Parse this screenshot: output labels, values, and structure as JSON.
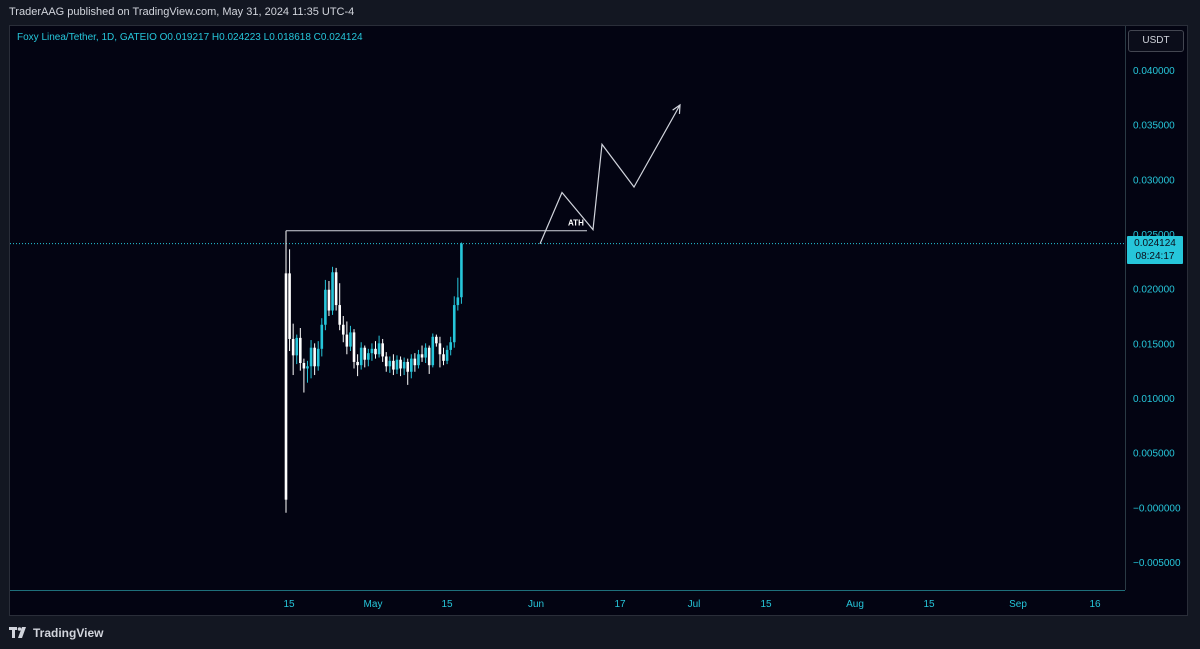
{
  "header": {
    "published": "TraderAAG published on TradingView.com, May 31, 2024 11:35 UTC-4"
  },
  "legend": {
    "text": "Foxy Linea/Tether, 1D, GATEIO  O0.019217  H0.024223  L0.018618  C0.024124"
  },
  "currency_button": "USDT",
  "last_price": {
    "value": "0.024124",
    "countdown": "08:24:17"
  },
  "colors": {
    "accent": "#26c6da",
    "background": "#030412",
    "axis_text": "#26c6da",
    "drawing": "#d1d4dc"
  },
  "footer": {
    "brand": "TradingView",
    "icon": "tradingview-logo-icon"
  },
  "chart_data": {
    "type": "candlestick",
    "title": "Foxy Linea/Tether, 1D, GATEIO",
    "xlabel": "",
    "ylabel": "",
    "ylim": [
      -0.0065,
      0.043
    ],
    "y_ticks": [
      "0.040000",
      "0.035000",
      "0.030000",
      "0.025000",
      "0.020000",
      "0.015000",
      "0.010000",
      "0.005000",
      "−0.000000",
      "−0.005000"
    ],
    "x_ticks": [
      "15",
      "May",
      "15",
      "Jun",
      "17",
      "Jul",
      "15",
      "Aug",
      "15",
      "Sep",
      "16"
    ],
    "candles": [
      {
        "date": "2024-04-15",
        "o": 0.0214,
        "h": 0.0253,
        "l": -0.0005,
        "c": 0.0007
      },
      {
        "date": "2024-04-16",
        "o": 0.0214,
        "h": 0.0236,
        "l": 0.0143,
        "c": 0.0154
      },
      {
        "date": "2024-04-17",
        "o": 0.0154,
        "h": 0.0168,
        "l": 0.0121,
        "c": 0.0139
      },
      {
        "date": "2024-04-18",
        "o": 0.0139,
        "h": 0.0158,
        "l": 0.0131,
        "c": 0.0155
      },
      {
        "date": "2024-04-19",
        "o": 0.0155,
        "h": 0.0164,
        "l": 0.0125,
        "c": 0.0132
      },
      {
        "date": "2024-04-20",
        "o": 0.0132,
        "h": 0.0136,
        "l": 0.0105,
        "c": 0.0127
      },
      {
        "date": "2024-04-21",
        "o": 0.0127,
        "h": 0.0134,
        "l": 0.0114,
        "c": 0.0129
      },
      {
        "date": "2024-04-22",
        "o": 0.0129,
        "h": 0.0153,
        "l": 0.0118,
        "c": 0.0146
      },
      {
        "date": "2024-04-23",
        "o": 0.0146,
        "h": 0.015,
        "l": 0.0121,
        "c": 0.0129
      },
      {
        "date": "2024-04-24",
        "o": 0.0129,
        "h": 0.0152,
        "l": 0.0125,
        "c": 0.0145
      },
      {
        "date": "2024-04-25",
        "o": 0.0145,
        "h": 0.0173,
        "l": 0.0138,
        "c": 0.0167
      },
      {
        "date": "2024-04-26",
        "o": 0.0167,
        "h": 0.0208,
        "l": 0.0162,
        "c": 0.0199
      },
      {
        "date": "2024-04-27",
        "o": 0.0199,
        "h": 0.0207,
        "l": 0.0175,
        "c": 0.018
      },
      {
        "date": "2024-04-28",
        "o": 0.018,
        "h": 0.022,
        "l": 0.0176,
        "c": 0.0215
      },
      {
        "date": "2024-04-29",
        "o": 0.0215,
        "h": 0.0219,
        "l": 0.018,
        "c": 0.0185
      },
      {
        "date": "2024-04-30",
        "o": 0.0185,
        "h": 0.0205,
        "l": 0.0162,
        "c": 0.0167
      },
      {
        "date": "2024-05-01",
        "o": 0.0167,
        "h": 0.0175,
        "l": 0.0151,
        "c": 0.0158
      },
      {
        "date": "2024-05-02",
        "o": 0.0158,
        "h": 0.017,
        "l": 0.014,
        "c": 0.0147
      },
      {
        "date": "2024-05-03",
        "o": 0.0147,
        "h": 0.0166,
        "l": 0.0143,
        "c": 0.016
      },
      {
        "date": "2024-05-04",
        "o": 0.016,
        "h": 0.0163,
        "l": 0.0127,
        "c": 0.0133
      },
      {
        "date": "2024-05-05",
        "o": 0.0133,
        "h": 0.014,
        "l": 0.012,
        "c": 0.013
      },
      {
        "date": "2024-05-06",
        "o": 0.013,
        "h": 0.0151,
        "l": 0.0126,
        "c": 0.0146
      },
      {
        "date": "2024-05-07",
        "o": 0.0146,
        "h": 0.0148,
        "l": 0.0128,
        "c": 0.0135
      },
      {
        "date": "2024-05-08",
        "o": 0.0135,
        "h": 0.0145,
        "l": 0.0129,
        "c": 0.0141
      },
      {
        "date": "2024-05-09",
        "o": 0.0141,
        "h": 0.015,
        "l": 0.0134,
        "c": 0.0145
      },
      {
        "date": "2024-05-10",
        "o": 0.0145,
        "h": 0.0152,
        "l": 0.0136,
        "c": 0.014
      },
      {
        "date": "2024-05-11",
        "o": 0.014,
        "h": 0.0157,
        "l": 0.0137,
        "c": 0.015
      },
      {
        "date": "2024-05-12",
        "o": 0.015,
        "h": 0.0154,
        "l": 0.0133,
        "c": 0.0138
      },
      {
        "date": "2024-05-13",
        "o": 0.0138,
        "h": 0.0142,
        "l": 0.0124,
        "c": 0.0129
      },
      {
        "date": "2024-05-14",
        "o": 0.0129,
        "h": 0.0138,
        "l": 0.0123,
        "c": 0.0134
      },
      {
        "date": "2024-05-15",
        "o": 0.0134,
        "h": 0.014,
        "l": 0.0121,
        "c": 0.0126
      },
      {
        "date": "2024-05-16",
        "o": 0.0126,
        "h": 0.0139,
        "l": 0.0122,
        "c": 0.0135
      },
      {
        "date": "2024-05-17",
        "o": 0.0135,
        "h": 0.0138,
        "l": 0.012,
        "c": 0.0127
      },
      {
        "date": "2024-05-18",
        "o": 0.0127,
        "h": 0.0137,
        "l": 0.0121,
        "c": 0.0133
      },
      {
        "date": "2024-05-19",
        "o": 0.0133,
        "h": 0.0136,
        "l": 0.0112,
        "c": 0.0124
      },
      {
        "date": "2024-05-20",
        "o": 0.0124,
        "h": 0.014,
        "l": 0.0118,
        "c": 0.0136
      },
      {
        "date": "2024-05-21",
        "o": 0.0136,
        "h": 0.0141,
        "l": 0.0124,
        "c": 0.013
      },
      {
        "date": "2024-05-22",
        "o": 0.013,
        "h": 0.0144,
        "l": 0.0127,
        "c": 0.014
      },
      {
        "date": "2024-05-23",
        "o": 0.014,
        "h": 0.0148,
        "l": 0.0133,
        "c": 0.0137
      },
      {
        "date": "2024-05-24",
        "o": 0.0137,
        "h": 0.015,
        "l": 0.0132,
        "c": 0.0146
      },
      {
        "date": "2024-05-25",
        "o": 0.0146,
        "h": 0.0148,
        "l": 0.0122,
        "c": 0.013
      },
      {
        "date": "2024-05-26",
        "o": 0.013,
        "h": 0.0159,
        "l": 0.0128,
        "c": 0.0156
      },
      {
        "date": "2024-05-27",
        "o": 0.0156,
        "h": 0.0158,
        "l": 0.0147,
        "c": 0.015
      },
      {
        "date": "2024-05-28",
        "o": 0.015,
        "h": 0.0156,
        "l": 0.0128,
        "c": 0.014
      },
      {
        "date": "2024-05-29",
        "o": 0.014,
        "h": 0.0146,
        "l": 0.013,
        "c": 0.0134
      },
      {
        "date": "2024-05-30",
        "o": 0.0134,
        "h": 0.0148,
        "l": 0.0131,
        "c": 0.0144
      },
      {
        "date": "2024-05-31",
        "o": 0.0144,
        "h": 0.0156,
        "l": 0.0139,
        "c": 0.0151
      },
      {
        "date": "2024-06-01",
        "o": 0.0151,
        "h": 0.0193,
        "l": 0.0146,
        "c": 0.0185
      },
      {
        "date": "2024-06-02",
        "o": 0.0185,
        "h": 0.021,
        "l": 0.018,
        "c": 0.0192
      },
      {
        "date": "2024-06-03",
        "o": 0.019217,
        "h": 0.024223,
        "l": 0.018618,
        "c": 0.024124
      }
    ],
    "annotations": [
      {
        "type": "horizontal_line",
        "label": "ATH",
        "y": 0.0253
      },
      {
        "type": "projection_path",
        "points_y": [
          0.0241,
          0.0288,
          0.0254,
          0.0332,
          0.0293,
          0.0368
        ]
      },
      {
        "type": "last_price_line",
        "y": 0.024124
      }
    ],
    "grid": false
  }
}
